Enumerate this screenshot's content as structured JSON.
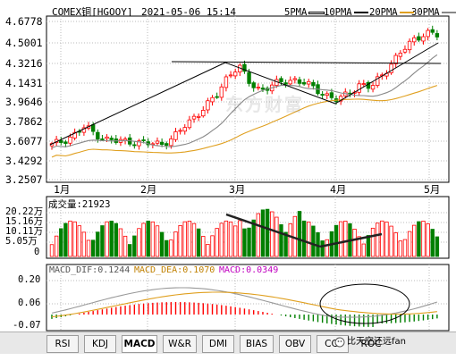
{
  "header": {
    "symbol": "COMEX铜[HGOOY]",
    "datetime": "2021-05-06 15:14",
    "legend": [
      {
        "label": "5PMA",
        "color": "#ffffff",
        "border": "#000000"
      },
      {
        "label": "10PMA",
        "color": "#000000"
      },
      {
        "label": "20PMA",
        "color": "#e0a020"
      },
      {
        "label": "30PMA",
        "color": "#888888"
      }
    ]
  },
  "price_axis": {
    "labels": [
      "4.6778",
      "4.5001",
      "4.3216",
      "4.1431",
      "3.9646",
      "3.7862",
      "3.6077",
      "3.4292",
      "3.2507"
    ]
  },
  "x_axis": {
    "labels": [
      "1月",
      "2月",
      "3月",
      "4月",
      "5月"
    ]
  },
  "volume": {
    "title": "成交量",
    "value": "21923",
    "axis_labels": [
      "20.22万",
      "15.16万",
      "10.11万",
      "5.05万",
      "0"
    ]
  },
  "macd": {
    "dif_label": "MACD_DIF:",
    "dif_value": "0.1244",
    "dea_label": "MACD_DEA:",
    "dea_value": "0.1070",
    "macd_label": "MACD:",
    "macd_value": "0.0349",
    "axis_labels": [
      "0.20",
      "0.06",
      "-0.07"
    ]
  },
  "center_watermark": "东方财富",
  "tabs": [
    "RSI",
    "KDJ",
    "MACD",
    "W&R",
    "DMI",
    "BIAS",
    "OBV",
    "CCI",
    "ROC"
  ],
  "active_tab": "MACD",
  "watermark_text": "比天空还远fan",
  "colors": {
    "up": "#ff0000",
    "down": "#008000",
    "ma20": "#e0a020",
    "ma30": "#888888",
    "dif": "#999999",
    "dea": "#e0a020"
  },
  "chart_data": {
    "type": "candlestick",
    "title": "COMEX铜[HGOOY]",
    "x_categories": [
      "1月",
      "2月",
      "3月",
      "4月",
      "5月"
    ],
    "y_range": [
      3.2507,
      4.6778
    ],
    "volume_range_wan": [
      0,
      20.22
    ],
    "macd_range": [
      -0.07,
      0.2
    ],
    "approx_close_series": [
      3.56,
      3.6,
      3.65,
      3.72,
      3.66,
      3.61,
      3.59,
      3.6,
      3.58,
      3.57,
      3.58,
      3.62,
      3.72,
      3.82,
      3.9,
      4.0,
      4.18,
      4.25,
      4.1,
      4.05,
      4.08,
      4.12,
      4.14,
      4.1,
      4.05,
      4.0,
      3.95,
      4.02,
      4.1,
      4.06,
      4.18,
      4.3,
      4.4,
      4.5,
      4.55,
      4.52
    ],
    "annotations": [
      "upper trendline",
      "resistance line",
      "volume down-trend line",
      "volume up-trend line",
      "MACD ellipse"
    ]
  }
}
